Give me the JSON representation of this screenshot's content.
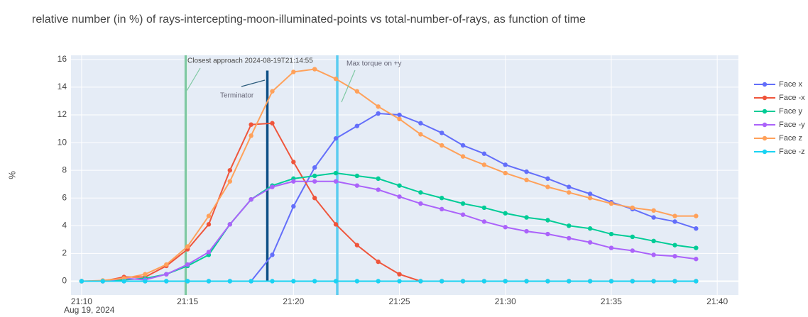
{
  "chart_data": {
    "type": "line",
    "title": "relative number (in %) of rays-intercepting-moon-illuminated-points vs total-number-of-rays, as function of time",
    "y_label": "%",
    "x_date_label": "Aug 19, 2024",
    "x": [
      "21:10",
      "21:11",
      "21:12",
      "21:13",
      "21:14",
      "21:15",
      "21:16",
      "21:17",
      "21:18",
      "21:19",
      "21:20",
      "21:21",
      "21:22",
      "21:23",
      "21:24",
      "21:25",
      "21:26",
      "21:27",
      "21:28",
      "21:29",
      "21:30",
      "21:31",
      "21:32",
      "21:33",
      "21:34",
      "21:35",
      "21:36",
      "21:37",
      "21:38",
      "21:39"
    ],
    "series": [
      {
        "name": "Face x",
        "color": "#636efa",
        "values": [
          0,
          0,
          0,
          0,
          0,
          0,
          0,
          0,
          0,
          1.9,
          5.4,
          8.2,
          10.3,
          11.2,
          12.1,
          12.0,
          11.4,
          10.7,
          9.8,
          9.2,
          8.4,
          7.9,
          7.4,
          6.8,
          6.3,
          5.7,
          5.2,
          4.6,
          4.3,
          3.8
        ]
      },
      {
        "name": "Face -x",
        "color": "#ef553b",
        "values": [
          0,
          0,
          0.3,
          0.3,
          1.1,
          2.3,
          4.1,
          8.0,
          11.3,
          11.4,
          8.6,
          6.0,
          4.1,
          2.6,
          1.4,
          0.5,
          0,
          0,
          0,
          0,
          0,
          0,
          0,
          0,
          0,
          0,
          0,
          0,
          0,
          0
        ]
      },
      {
        "name": "Face y",
        "color": "#00cc96",
        "values": [
          0,
          0,
          0.1,
          0.2,
          0.5,
          1.1,
          1.9,
          4.1,
          5.9,
          6.9,
          7.4,
          7.6,
          7.8,
          7.6,
          7.4,
          6.9,
          6.4,
          6.0,
          5.6,
          5.3,
          4.9,
          4.6,
          4.4,
          4.0,
          3.8,
          3.4,
          3.2,
          2.9,
          2.6,
          2.4
        ]
      },
      {
        "name": "Face -y",
        "color": "#ab63fa",
        "values": [
          0,
          0,
          0.2,
          0.1,
          0.5,
          1.2,
          2.1,
          4.1,
          5.9,
          6.8,
          7.2,
          7.2,
          7.2,
          6.9,
          6.6,
          6.1,
          5.6,
          5.2,
          4.8,
          4.3,
          3.9,
          3.6,
          3.4,
          3.1,
          2.8,
          2.4,
          2.2,
          1.9,
          1.8,
          1.6
        ]
      },
      {
        "name": "Face z",
        "color": "#ffa15a",
        "values": [
          0,
          0.05,
          0.2,
          0.5,
          1.2,
          2.5,
          4.7,
          7.2,
          10.5,
          13.7,
          15.1,
          15.3,
          14.6,
          13.7,
          12.6,
          11.7,
          10.6,
          9.8,
          9.0,
          8.4,
          7.8,
          7.3,
          6.8,
          6.4,
          6.0,
          5.6,
          5.3,
          5.1,
          4.7,
          4.7
        ]
      },
      {
        "name": "Face -z",
        "color": "#19d3f3",
        "values": [
          0,
          0,
          0,
          0,
          0,
          0,
          0,
          0,
          0,
          0,
          0,
          0,
          0,
          0,
          0,
          0,
          0,
          0,
          0,
          0,
          0,
          0,
          0,
          0,
          0,
          0,
          0,
          0,
          0,
          0
        ]
      }
    ],
    "vlines": [
      {
        "x": "21:14:55",
        "color": "#7fc9a3"
      },
      {
        "x": "21:18:46",
        "color": "#0d4f86",
        "y_top": 15.2
      },
      {
        "x": "21:22:04",
        "color": "#5bcdf0"
      }
    ],
    "annotations": [
      "Closest approach 2024-08-19T21:14:55",
      "Terminator",
      "Max torque on +y"
    ],
    "xlim": [
      "21:09:30",
      "21:41"
    ],
    "xticks": [
      "21:10",
      "21:15",
      "21:20",
      "21:25",
      "21:30",
      "21:35",
      "21:40"
    ],
    "ylim": [
      -1,
      16.3
    ],
    "yticks": [
      0,
      2,
      4,
      6,
      8,
      10,
      12,
      14,
      16
    ],
    "grid": true
  }
}
